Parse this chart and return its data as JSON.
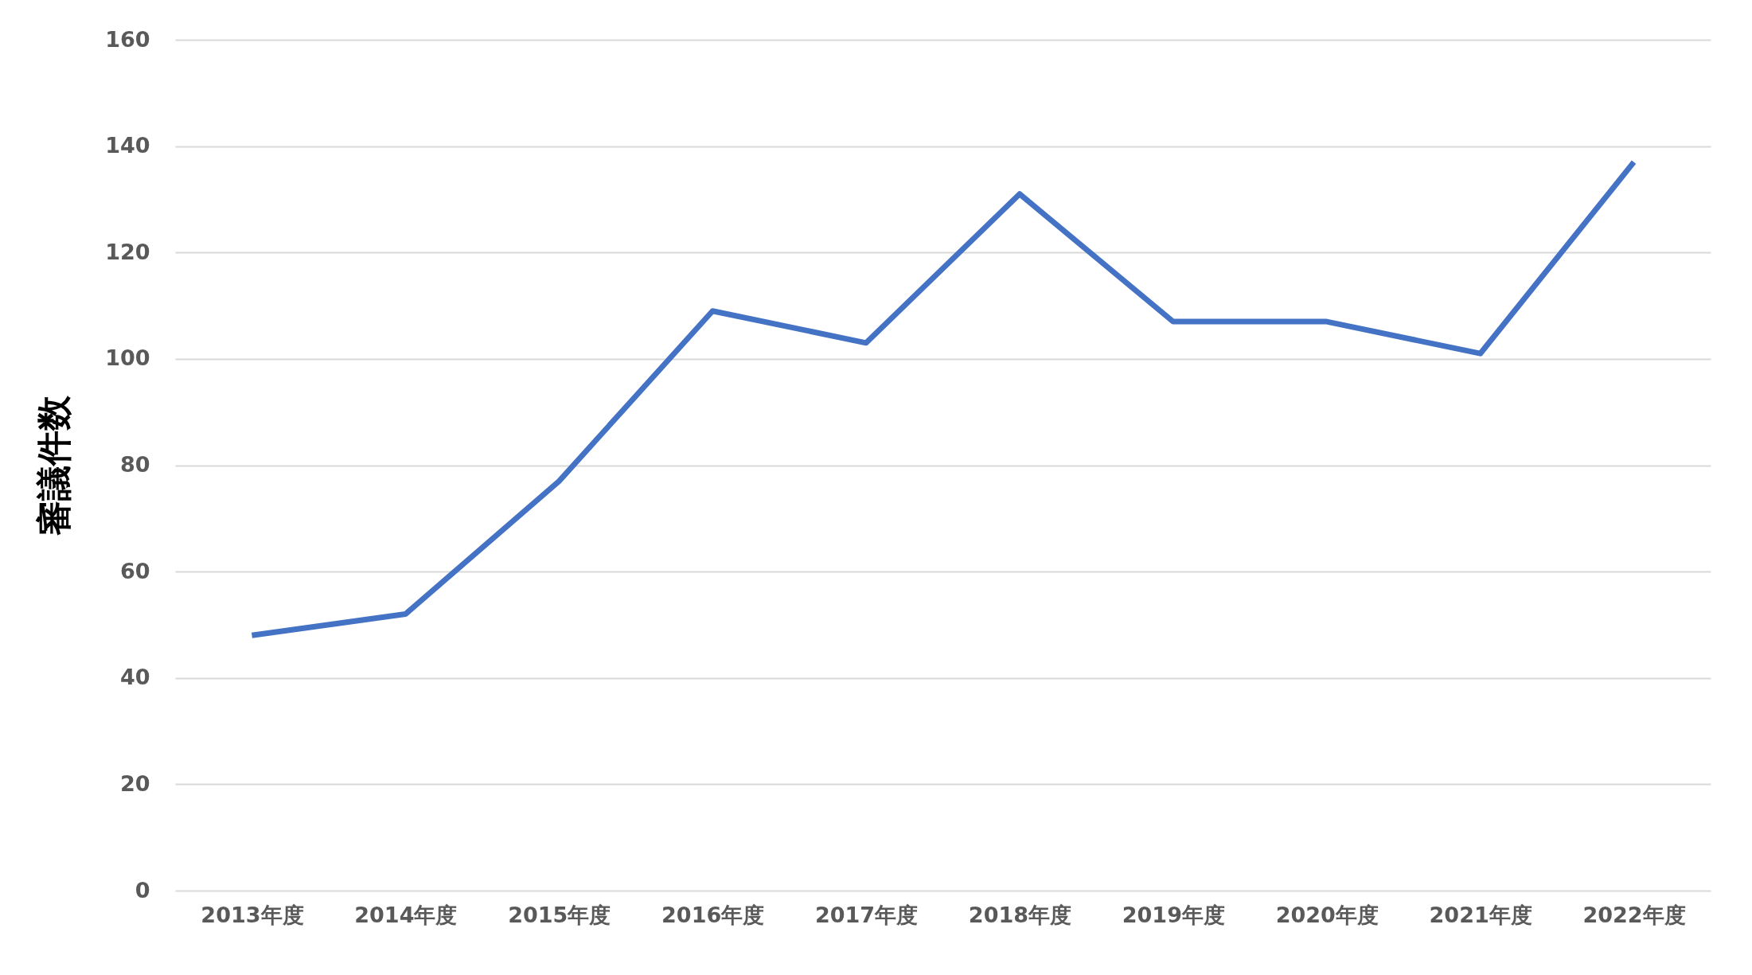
{
  "chart_data": {
    "type": "line",
    "ylabel": "審議件数",
    "categories": [
      "2013年度",
      "2014年度",
      "2015年度",
      "2016年度",
      "2017年度",
      "2018年度",
      "2019年度",
      "2020年度",
      "2021年度",
      "2022年度"
    ],
    "series": [
      {
        "color": "#4472c4",
        "values": [
          48,
          52,
          77,
          109,
          103,
          131,
          107,
          107,
          101,
          137
        ]
      }
    ],
    "ylim": [
      0,
      160
    ],
    "yticks": [
      0,
      20,
      40,
      60,
      80,
      100,
      120,
      140,
      160
    ],
    "grid": "y",
    "marker": "none",
    "line_style": "solid"
  }
}
